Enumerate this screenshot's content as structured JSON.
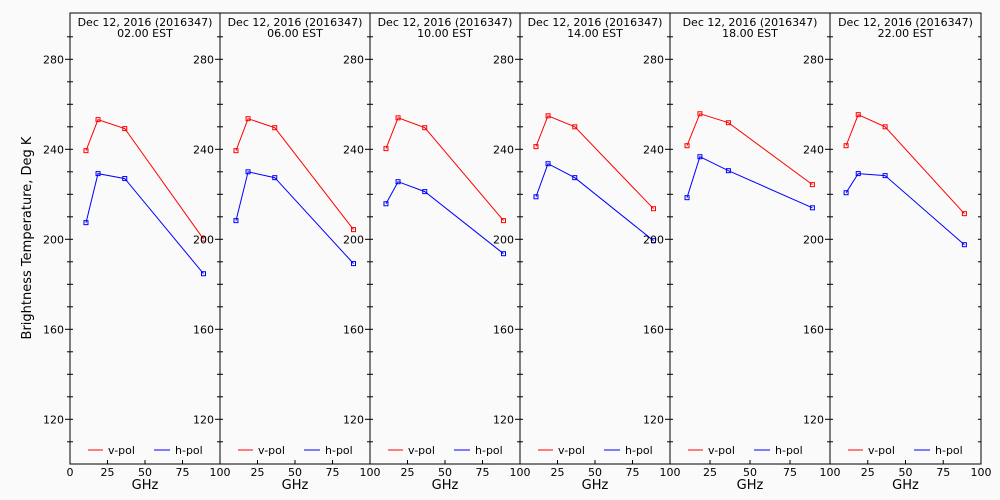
{
  "chart_data": {
    "type": "line",
    "ylabel": "Brightness Temperature, Deg K",
    "xlabel": "GHz",
    "xlim": [
      0,
      100
    ],
    "ylim": [
      100,
      300
    ],
    "xticks": [
      0,
      25,
      50,
      75,
      100
    ],
    "yticks": [
      120,
      160,
      200,
      240,
      280
    ],
    "grid": false,
    "legend_placement": "bottom",
    "legend": [
      "v-pol",
      "h-pol"
    ],
    "colors": {
      "v-pol": "#ff0000",
      "h-pol": "#0000ff"
    },
    "x": [
      10.65,
      18.7,
      36.5,
      89
    ],
    "panels": [
      {
        "title": "Dec 12, 2016 (2016347)",
        "subtitle": "02.00 EST",
        "series": [
          {
            "name": "v-pol",
            "values": [
              239.4,
              253.2,
              249.2,
              200.1
            ]
          },
          {
            "name": "h-pol",
            "values": [
              207.4,
              229.2,
              227.0,
              184.7
            ]
          }
        ]
      },
      {
        "title": "Dec 12, 2016 (2016347)",
        "subtitle": "06.00 EST",
        "series": [
          {
            "name": "v-pol",
            "values": [
              239.4,
              253.6,
              249.6,
              204.3
            ]
          },
          {
            "name": "h-pol",
            "values": [
              208.3,
              230.0,
              227.4,
              189.2
            ]
          }
        ]
      },
      {
        "title": "Dec 12, 2016 (2016347)",
        "subtitle": "10.00 EST",
        "series": [
          {
            "name": "v-pol",
            "values": [
              240.3,
              254.0,
              249.6,
              208.3
            ]
          },
          {
            "name": "h-pol",
            "values": [
              215.8,
              225.6,
              221.2,
              193.6
            ]
          }
        ]
      },
      {
        "title": "Dec 12, 2016 (2016347)",
        "subtitle": "14.00 EST",
        "series": [
          {
            "name": "v-pol",
            "values": [
              241.2,
              254.9,
              250.0,
              213.6
            ]
          },
          {
            "name": "h-pol",
            "values": [
              218.9,
              233.6,
              227.4,
              199.4
            ]
          }
        ]
      },
      {
        "title": "Dec 12, 2016 (2016347)",
        "subtitle": "18.00 EST",
        "series": [
          {
            "name": "v-pol",
            "values": [
              241.6,
              255.8,
              251.8,
              224.3
            ]
          },
          {
            "name": "h-pol",
            "values": [
              218.5,
              236.7,
              230.5,
              214.0
            ]
          }
        ]
      },
      {
        "title": "Dec 12, 2016 (2016347)",
        "subtitle": "22.00 EST",
        "series": [
          {
            "name": "v-pol",
            "values": [
              241.6,
              255.4,
              250.0,
              211.4
            ]
          },
          {
            "name": "h-pol",
            "values": [
              220.7,
              229.2,
              228.3,
              197.6
            ]
          }
        ]
      }
    ]
  }
}
